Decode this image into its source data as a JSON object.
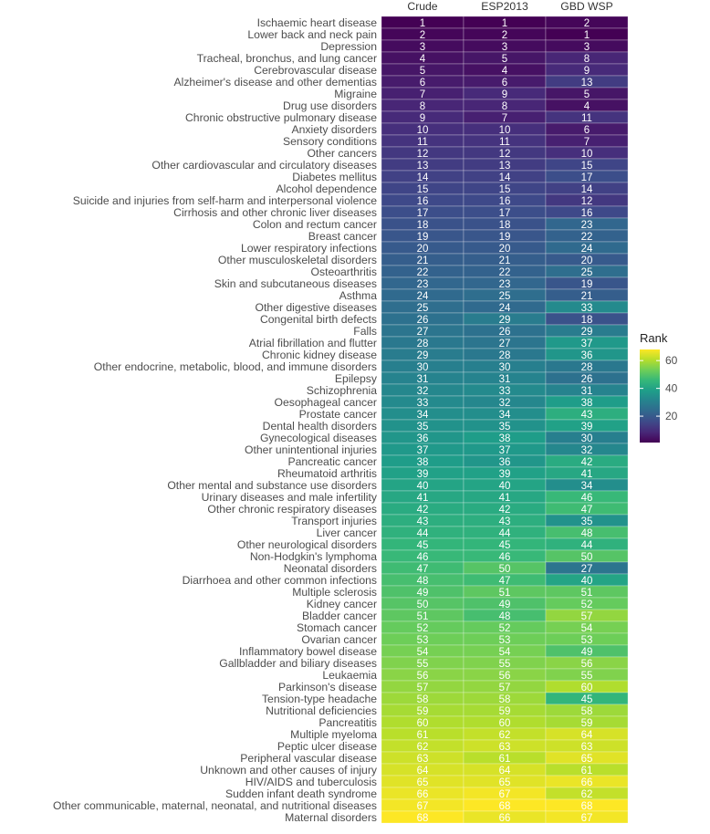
{
  "chart_data": {
    "type": "heatmap",
    "title": "",
    "xlabel": "",
    "ylabel": "",
    "columns": [
      "Crude",
      "ESP2013",
      "GBD WSP"
    ],
    "rows": [
      {
        "label": "Ischaemic heart disease",
        "values": [
          1,
          1,
          2
        ]
      },
      {
        "label": "Lower back and neck pain",
        "values": [
          2,
          2,
          1
        ]
      },
      {
        "label": "Depression",
        "values": [
          3,
          3,
          3
        ]
      },
      {
        "label": "Tracheal, bronchus, and lung cancer",
        "values": [
          4,
          5,
          8
        ]
      },
      {
        "label": "Cerebrovascular disease",
        "values": [
          5,
          4,
          9
        ]
      },
      {
        "label": "Alzheimer's disease and other dementias",
        "values": [
          6,
          6,
          13
        ]
      },
      {
        "label": "Migraine",
        "values": [
          7,
          9,
          5
        ]
      },
      {
        "label": "Drug use disorders",
        "values": [
          8,
          8,
          4
        ]
      },
      {
        "label": "Chronic obstructive pulmonary disease",
        "values": [
          9,
          7,
          11
        ]
      },
      {
        "label": "Anxiety disorders",
        "values": [
          10,
          10,
          6
        ]
      },
      {
        "label": "Sensory conditions",
        "values": [
          11,
          11,
          7
        ]
      },
      {
        "label": "Other cancers",
        "values": [
          12,
          12,
          10
        ]
      },
      {
        "label": "Other cardiovascular and circulatory diseases",
        "values": [
          13,
          13,
          15
        ]
      },
      {
        "label": "Diabetes mellitus",
        "values": [
          14,
          14,
          17
        ]
      },
      {
        "label": "Alcohol dependence",
        "values": [
          15,
          15,
          14
        ]
      },
      {
        "label": "Suicide and injuries from self-harm and interpersonal violence",
        "values": [
          16,
          16,
          12
        ]
      },
      {
        "label": "Cirrhosis and other chronic liver diseases",
        "values": [
          17,
          17,
          16
        ]
      },
      {
        "label": "Colon and rectum cancer",
        "values": [
          18,
          18,
          23
        ]
      },
      {
        "label": "Breast cancer",
        "values": [
          19,
          19,
          22
        ]
      },
      {
        "label": "Lower respiratory infections",
        "values": [
          20,
          20,
          24
        ]
      },
      {
        "label": "Other musculoskeletal disorders",
        "values": [
          21,
          21,
          20
        ]
      },
      {
        "label": "Osteoarthritis",
        "values": [
          22,
          22,
          25
        ]
      },
      {
        "label": "Skin and subcutaneous diseases",
        "values": [
          23,
          23,
          19
        ]
      },
      {
        "label": "Asthma",
        "values": [
          24,
          25,
          21
        ]
      },
      {
        "label": "Other digestive diseases",
        "values": [
          25,
          24,
          33
        ]
      },
      {
        "label": "Congenital birth defects",
        "values": [
          26,
          29,
          18
        ]
      },
      {
        "label": "Falls",
        "values": [
          27,
          26,
          29
        ]
      },
      {
        "label": "Atrial fibrillation and flutter",
        "values": [
          28,
          27,
          37
        ]
      },
      {
        "label": "Chronic kidney disease",
        "values": [
          29,
          28,
          36
        ]
      },
      {
        "label": "Other endocrine, metabolic, blood, and immune disorders",
        "values": [
          30,
          30,
          28
        ]
      },
      {
        "label": "Epilepsy",
        "values": [
          31,
          31,
          26
        ]
      },
      {
        "label": "Schizophrenia",
        "values": [
          32,
          33,
          31
        ]
      },
      {
        "label": "Oesophageal cancer",
        "values": [
          33,
          32,
          38
        ]
      },
      {
        "label": "Prostate cancer",
        "values": [
          34,
          34,
          43
        ]
      },
      {
        "label": "Dental health disorders",
        "values": [
          35,
          35,
          39
        ]
      },
      {
        "label": "Gynecological diseases",
        "values": [
          36,
          38,
          30
        ]
      },
      {
        "label": "Other unintentional injuries",
        "values": [
          37,
          37,
          32
        ]
      },
      {
        "label": "Pancreatic cancer",
        "values": [
          38,
          36,
          42
        ]
      },
      {
        "label": "Rheumatoid arthritis",
        "values": [
          39,
          39,
          41
        ]
      },
      {
        "label": "Other mental and substance use disorders",
        "values": [
          40,
          40,
          34
        ]
      },
      {
        "label": "Urinary diseases and male infertility",
        "values": [
          41,
          41,
          46
        ]
      },
      {
        "label": "Other chronic respiratory diseases",
        "values": [
          42,
          42,
          47
        ]
      },
      {
        "label": "Transport injuries",
        "values": [
          43,
          43,
          35
        ]
      },
      {
        "label": "Liver cancer",
        "values": [
          44,
          44,
          48
        ]
      },
      {
        "label": "Other neurological disorders",
        "values": [
          45,
          45,
          44
        ]
      },
      {
        "label": "Non-Hodgkin's lymphoma",
        "values": [
          46,
          46,
          50
        ]
      },
      {
        "label": "Neonatal disorders",
        "values": [
          47,
          50,
          27
        ]
      },
      {
        "label": "Diarrhoea and other common infections",
        "values": [
          48,
          47,
          40
        ]
      },
      {
        "label": "Multiple sclerosis",
        "values": [
          49,
          51,
          51
        ]
      },
      {
        "label": "Kidney cancer",
        "values": [
          50,
          49,
          52
        ]
      },
      {
        "label": "Bladder cancer",
        "values": [
          51,
          48,
          57
        ]
      },
      {
        "label": "Stomach cancer",
        "values": [
          52,
          52,
          54
        ]
      },
      {
        "label": "Ovarian cancer",
        "values": [
          53,
          53,
          53
        ]
      },
      {
        "label": "Inflammatory bowel disease",
        "values": [
          54,
          54,
          49
        ]
      },
      {
        "label": "Gallbladder and biliary diseases",
        "values": [
          55,
          55,
          56
        ]
      },
      {
        "label": "Leukaemia",
        "values": [
          56,
          56,
          55
        ]
      },
      {
        "label": "Parkinson's disease",
        "values": [
          57,
          57,
          60
        ]
      },
      {
        "label": "Tension-type headache",
        "values": [
          58,
          58,
          45
        ]
      },
      {
        "label": "Nutritional deficiencies",
        "values": [
          59,
          59,
          58
        ]
      },
      {
        "label": "Pancreatitis",
        "values": [
          60,
          60,
          59
        ]
      },
      {
        "label": "Multiple myeloma",
        "values": [
          61,
          62,
          64
        ]
      },
      {
        "label": "Peptic ulcer disease",
        "values": [
          62,
          63,
          63
        ]
      },
      {
        "label": "Peripheral vascular disease",
        "values": [
          63,
          61,
          65
        ]
      },
      {
        "label": "Unknown and other causes of injury",
        "values": [
          64,
          64,
          61
        ]
      },
      {
        "label": "HIV/AIDS and tuberculosis",
        "values": [
          65,
          65,
          66
        ]
      },
      {
        "label": "Sudden infant death syndrome",
        "values": [
          66,
          67,
          62
        ]
      },
      {
        "label": "Other communicable, maternal, neonatal, and nutritional diseases",
        "values": [
          67,
          68,
          68
        ]
      },
      {
        "label": "Maternal disorders",
        "values": [
          68,
          66,
          67
        ]
      }
    ],
    "color_scale": {
      "name": "viridis",
      "range": [
        1,
        68
      ],
      "stops": [
        "#440154",
        "#482878",
        "#3e4989",
        "#31688e",
        "#26828e",
        "#1f9e89",
        "#35b779",
        "#6ece58",
        "#b5de2b",
        "#fde725"
      ]
    },
    "legend": {
      "title": "Rank",
      "ticks": [
        20,
        40,
        60
      ],
      "position": "right"
    }
  }
}
